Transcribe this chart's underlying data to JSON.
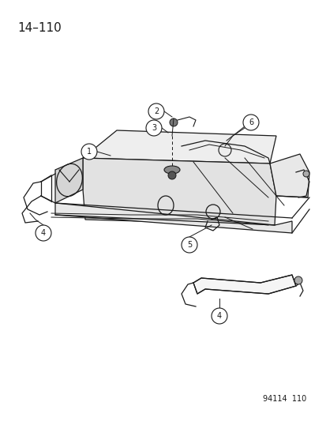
{
  "title": "14–110",
  "watermark": "94114  110",
  "background_color": "#ffffff",
  "line_color": "#1a1a1a",
  "title_font_size": 11,
  "watermark_font_size": 7,
  "label_circle_r": 0.018,
  "label_font_size": 7
}
